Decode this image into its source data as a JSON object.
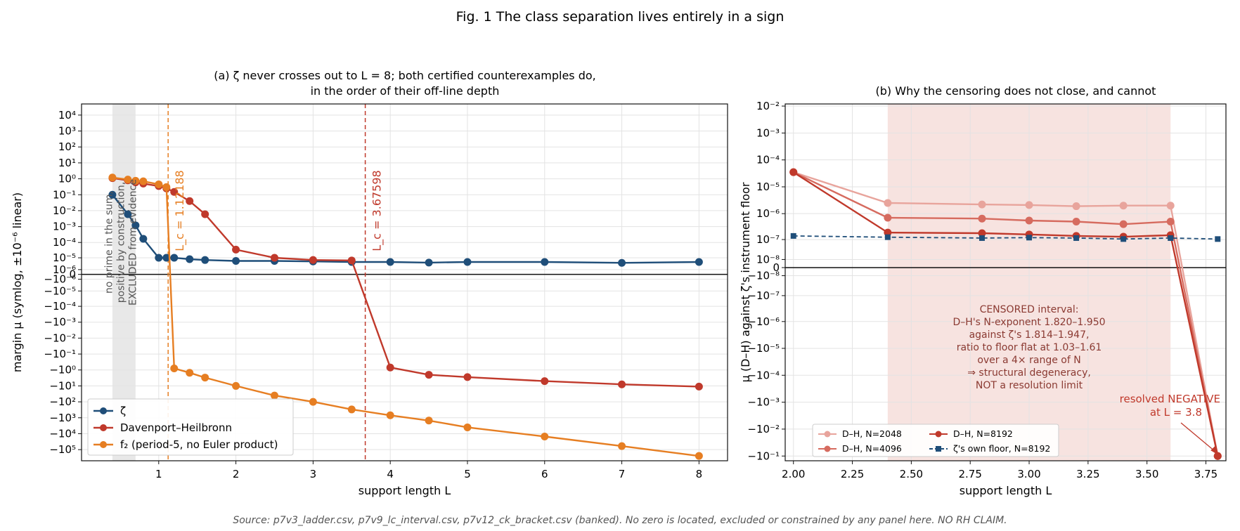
{
  "figure": {
    "title": "Fig. 1  The class separation lives entirely in a sign",
    "source_note": "Source: p7v3_ladder.csv, p7v9_lc_interval.csv, p7v12_ck_bracket.csv (banked). No zero is located, excluded or constrained by any panel here.  NO RH CLAIM."
  },
  "chart_data": [
    {
      "type": "line",
      "panel": "a",
      "title_lines": [
        "(a)  ζ never crosses out to L = 8; both certified counterexamples do,",
        "in the order of their off-line depth"
      ],
      "xlabel": "support length L",
      "ylabel": "margin μ  (symlog, ±10⁻⁶ linear)",
      "xlim": [
        0.0,
        8.37
      ],
      "yscale": "symlog",
      "ylinthresh": 1e-06,
      "ylim": [
        -500000.0,
        50000.0
      ],
      "xticks": [
        1,
        2,
        3,
        4,
        5,
        6,
        7,
        8
      ],
      "yticks": [
        {
          "v": 10000.0,
          "label": "10⁴"
        },
        {
          "v": 1000.0,
          "label": "10³"
        },
        {
          "v": 100.0,
          "label": "10²"
        },
        {
          "v": 10.0,
          "label": "10¹"
        },
        {
          "v": 1,
          "label": "10⁰"
        },
        {
          "v": 0.1,
          "label": "10⁻¹"
        },
        {
          "v": 0.01,
          "label": "10⁻²"
        },
        {
          "v": 0.001,
          "label": "10⁻³"
        },
        {
          "v": 0.0001,
          "label": "10⁻⁴"
        },
        {
          "v": 1e-05,
          "label": "10⁻⁵"
        },
        {
          "v": 1e-06,
          "label": "10⁻⁶"
        },
        {
          "v": 0,
          "label": "0"
        },
        {
          "v": -1e-06,
          "label": "−10⁻⁶"
        },
        {
          "v": -1e-05,
          "label": "−10⁻⁵"
        },
        {
          "v": -0.0001,
          "label": "−10⁻⁴"
        },
        {
          "v": -0.001,
          "label": "−10⁻³"
        },
        {
          "v": -0.01,
          "label": "−10⁻²"
        },
        {
          "v": -0.1,
          "label": "−10⁻¹"
        },
        {
          "v": -1,
          "label": "−10⁰"
        },
        {
          "v": -10.0,
          "label": "−10¹"
        },
        {
          "v": -100.0,
          "label": "−10²"
        },
        {
          "v": -1000.0,
          "label": "−10³"
        },
        {
          "v": -10000.0,
          "label": "−10⁴"
        },
        {
          "v": -100000.0,
          "label": "−10⁵"
        }
      ],
      "grid": true,
      "legend": "lower-left",
      "shaded_region": {
        "x": [
          0.4,
          0.7
        ],
        "color": "#d9d9d9",
        "label_lines": [
          "no prime in the sum,",
          "positive by construction,",
          "EXCLUDED from evidence"
        ]
      },
      "vlines": [
        {
          "x": 1.12188,
          "label": "L_c = 1.12188",
          "color": "#e67e22"
        },
        {
          "x": 3.67598,
          "label": "L_c = 3.67598",
          "color": "#c0392b"
        }
      ],
      "series": [
        {
          "name": "ζ",
          "color": "#1f4e79",
          "x": [
            0.4,
            0.6,
            0.7,
            0.8,
            1.0,
            1.1,
            1.2,
            1.4,
            1.6,
            2.0,
            2.5,
            3.0,
            3.5,
            4.0,
            4.5,
            5.0,
            6.0,
            7.0,
            8.0
          ],
          "y": [
            0.1,
            0.006,
            0.0012,
            0.00017,
            1e-05,
            1e-05,
            1e-05,
            8e-06,
            7e-06,
            6e-06,
            6e-06,
            5.5e-06,
            5e-06,
            5e-06,
            4.5e-06,
            5e-06,
            5e-06,
            4.3e-06,
            5e-06
          ]
        },
        {
          "name": "Davenport–Heilbronn",
          "color": "#c0392b",
          "x": [
            0.4,
            0.6,
            0.7,
            0.8,
            1.0,
            1.1,
            1.2,
            1.4,
            1.6,
            2.0,
            2.5,
            3.0,
            3.5,
            4.0,
            4.5,
            5.0,
            6.0,
            7.0,
            8.0
          ],
          "y": [
            1.1,
            0.8,
            0.6,
            0.5,
            0.35,
            0.25,
            0.15,
            0.04,
            0.006,
            3.5e-05,
            1e-05,
            7e-06,
            6.5e-06,
            -0.7,
            -2,
            -2.8,
            -5,
            -8,
            -11
          ]
        },
        {
          "name": "f₂ (period-5, no Euler product)",
          "color": "#e67e22",
          "x": [
            0.4,
            0.6,
            0.7,
            0.8,
            1.0,
            1.1,
            1.2,
            1.4,
            1.6,
            2.0,
            2.5,
            3.0,
            3.5,
            4.0,
            4.5,
            5.0,
            6.0,
            7.0,
            8.0
          ],
          "y": [
            1.2,
            0.9,
            0.75,
            0.7,
            0.45,
            0.3,
            -0.8,
            -1.5,
            -3,
            -10,
            -40,
            -100,
            -300,
            -700,
            -1500,
            -4000,
            -15000,
            -60000,
            -250000
          ]
        }
      ]
    },
    {
      "type": "line",
      "panel": "b",
      "title": "(b)  Why the censoring does not close, and cannot",
      "xlabel": "support length L",
      "ylabel": "μ (D–H) against ζ's instrument floor",
      "xlim": [
        1.965,
        3.835
      ],
      "yscale": "symlog",
      "ylinthresh": 1e-08,
      "ylim": [
        -0.15,
        0.012
      ],
      "xticks": [
        2.0,
        2.25,
        2.5,
        2.75,
        3.0,
        3.25,
        3.5,
        3.75
      ],
      "xtick_labels": [
        "2.00",
        "2.25",
        "2.50",
        "2.75",
        "3.00",
        "3.25",
        "3.50",
        "3.75"
      ],
      "yticks": [
        {
          "v": 0.01,
          "label": "10⁻²"
        },
        {
          "v": 0.001,
          "label": "10⁻³"
        },
        {
          "v": 0.0001,
          "label": "10⁻⁴"
        },
        {
          "v": 1e-05,
          "label": "10⁻⁵"
        },
        {
          "v": 1e-06,
          "label": "10⁻⁶"
        },
        {
          "v": 1e-07,
          "label": "10⁻⁷"
        },
        {
          "v": 1e-08,
          "label": "10⁻⁸"
        },
        {
          "v": 0,
          "label": "0"
        },
        {
          "v": -1e-08,
          "label": "−10⁻⁸"
        },
        {
          "v": -1e-07,
          "label": "−10⁻⁷"
        },
        {
          "v": -1e-06,
          "label": "−10⁻⁶"
        },
        {
          "v": -1e-05,
          "label": "−10⁻⁵"
        },
        {
          "v": -0.0001,
          "label": "−10⁻⁴"
        },
        {
          "v": -0.001,
          "label": "−10⁻³"
        },
        {
          "v": -0.01,
          "label": "−10⁻²"
        },
        {
          "v": -0.1,
          "label": "−10⁻¹"
        }
      ],
      "grid": true,
      "legend": "lower-left",
      "censored_region": {
        "x": [
          2.4,
          3.6
        ],
        "color": "#f5dcd8",
        "label_lines": [
          "CENSORED interval:",
          "D–H's N-exponent 1.820–1.950",
          "against ζ's 1.814–1.947,",
          "ratio to floor flat at 1.03–1.61",
          "over a 4× range of N",
          "⇒ structural degeneracy,",
          "NOT a resolution limit"
        ]
      },
      "annotation": {
        "lines": [
          "resolved NEGATIVE",
          "at L = 3.8"
        ],
        "x": 3.8,
        "y": -0.1,
        "color": "#c0392b"
      },
      "series": [
        {
          "name": "D–H, N=2048",
          "color": "#e8a49c",
          "x": [
            2.0,
            2.4,
            2.8,
            3.0,
            3.2,
            3.4,
            3.6,
            3.8
          ],
          "y": [
            3.5e-05,
            2.5e-06,
            2.2e-06,
            2.1e-06,
            1.9e-06,
            2e-06,
            2e-06,
            -0.1
          ]
        },
        {
          "name": "D–H, N=4096",
          "color": "#d66b5f",
          "x": [
            2.0,
            2.4,
            2.8,
            3.0,
            3.2,
            3.4,
            3.6,
            3.8
          ],
          "y": [
            3.5e-05,
            7e-07,
            6.5e-07,
            5.5e-07,
            5e-07,
            4e-07,
            5e-07,
            -0.1
          ]
        },
        {
          "name": "D–H, N=8192",
          "color": "#c0392b",
          "x": [
            2.0,
            2.4,
            2.8,
            3.0,
            3.2,
            3.4,
            3.6,
            3.8
          ],
          "y": [
            3.5e-05,
            1.9e-07,
            1.8e-07,
            1.6e-07,
            1.4e-07,
            1.3e-07,
            1.5e-07,
            -0.1
          ]
        },
        {
          "name": "ζ's own floor, N=8192",
          "color": "#1f4e79",
          "dashed": true,
          "x": [
            2.0,
            2.4,
            2.8,
            3.0,
            3.2,
            3.4,
            3.6,
            3.8
          ],
          "y": [
            1.4e-07,
            1.25e-07,
            1.15e-07,
            1.2e-07,
            1.15e-07,
            1.05e-07,
            1.15e-07,
            1.05e-07
          ]
        }
      ]
    }
  ]
}
